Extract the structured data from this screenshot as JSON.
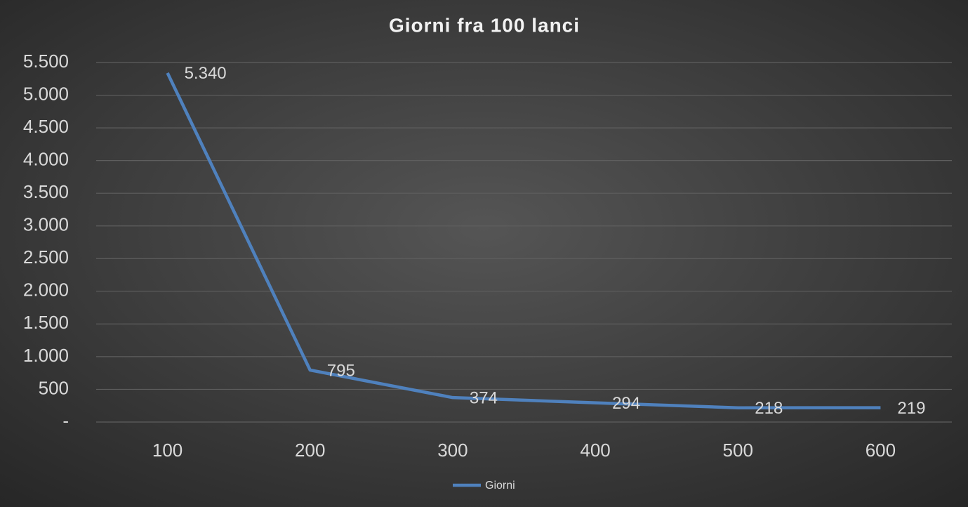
{
  "chart_data": {
    "type": "line",
    "title": "Giorni fra 100 lanci",
    "categories": [
      "100",
      "200",
      "300",
      "400",
      "500",
      "600"
    ],
    "series": [
      {
        "name": "Giorni",
        "color": "#4f81bd",
        "values": [
          5340,
          795,
          374,
          294,
          218,
          219
        ],
        "value_labels": [
          "5.340",
          "795",
          "374",
          "294",
          "218",
          "219"
        ]
      }
    ],
    "ylim": [
      0,
      5500
    ],
    "yticks": [
      {
        "value": 0,
        "label": "-"
      },
      500,
      {
        "value": 1000,
        "label": "1.000"
      },
      {
        "value": 1500,
        "label": "1.500"
      },
      {
        "value": 2000,
        "label": "2.000"
      },
      {
        "value": 2500,
        "label": "2.500"
      },
      {
        "value": 3000,
        "label": "3.000"
      },
      {
        "value": 3500,
        "label": "3.500"
      },
      {
        "value": 4000,
        "label": "4.000"
      },
      {
        "value": 4500,
        "label": "4.500"
      },
      {
        "value": 5000,
        "label": "5.000"
      },
      {
        "value": 5500,
        "label": "5.500"
      }
    ],
    "grid": true,
    "legend": "bottom"
  }
}
